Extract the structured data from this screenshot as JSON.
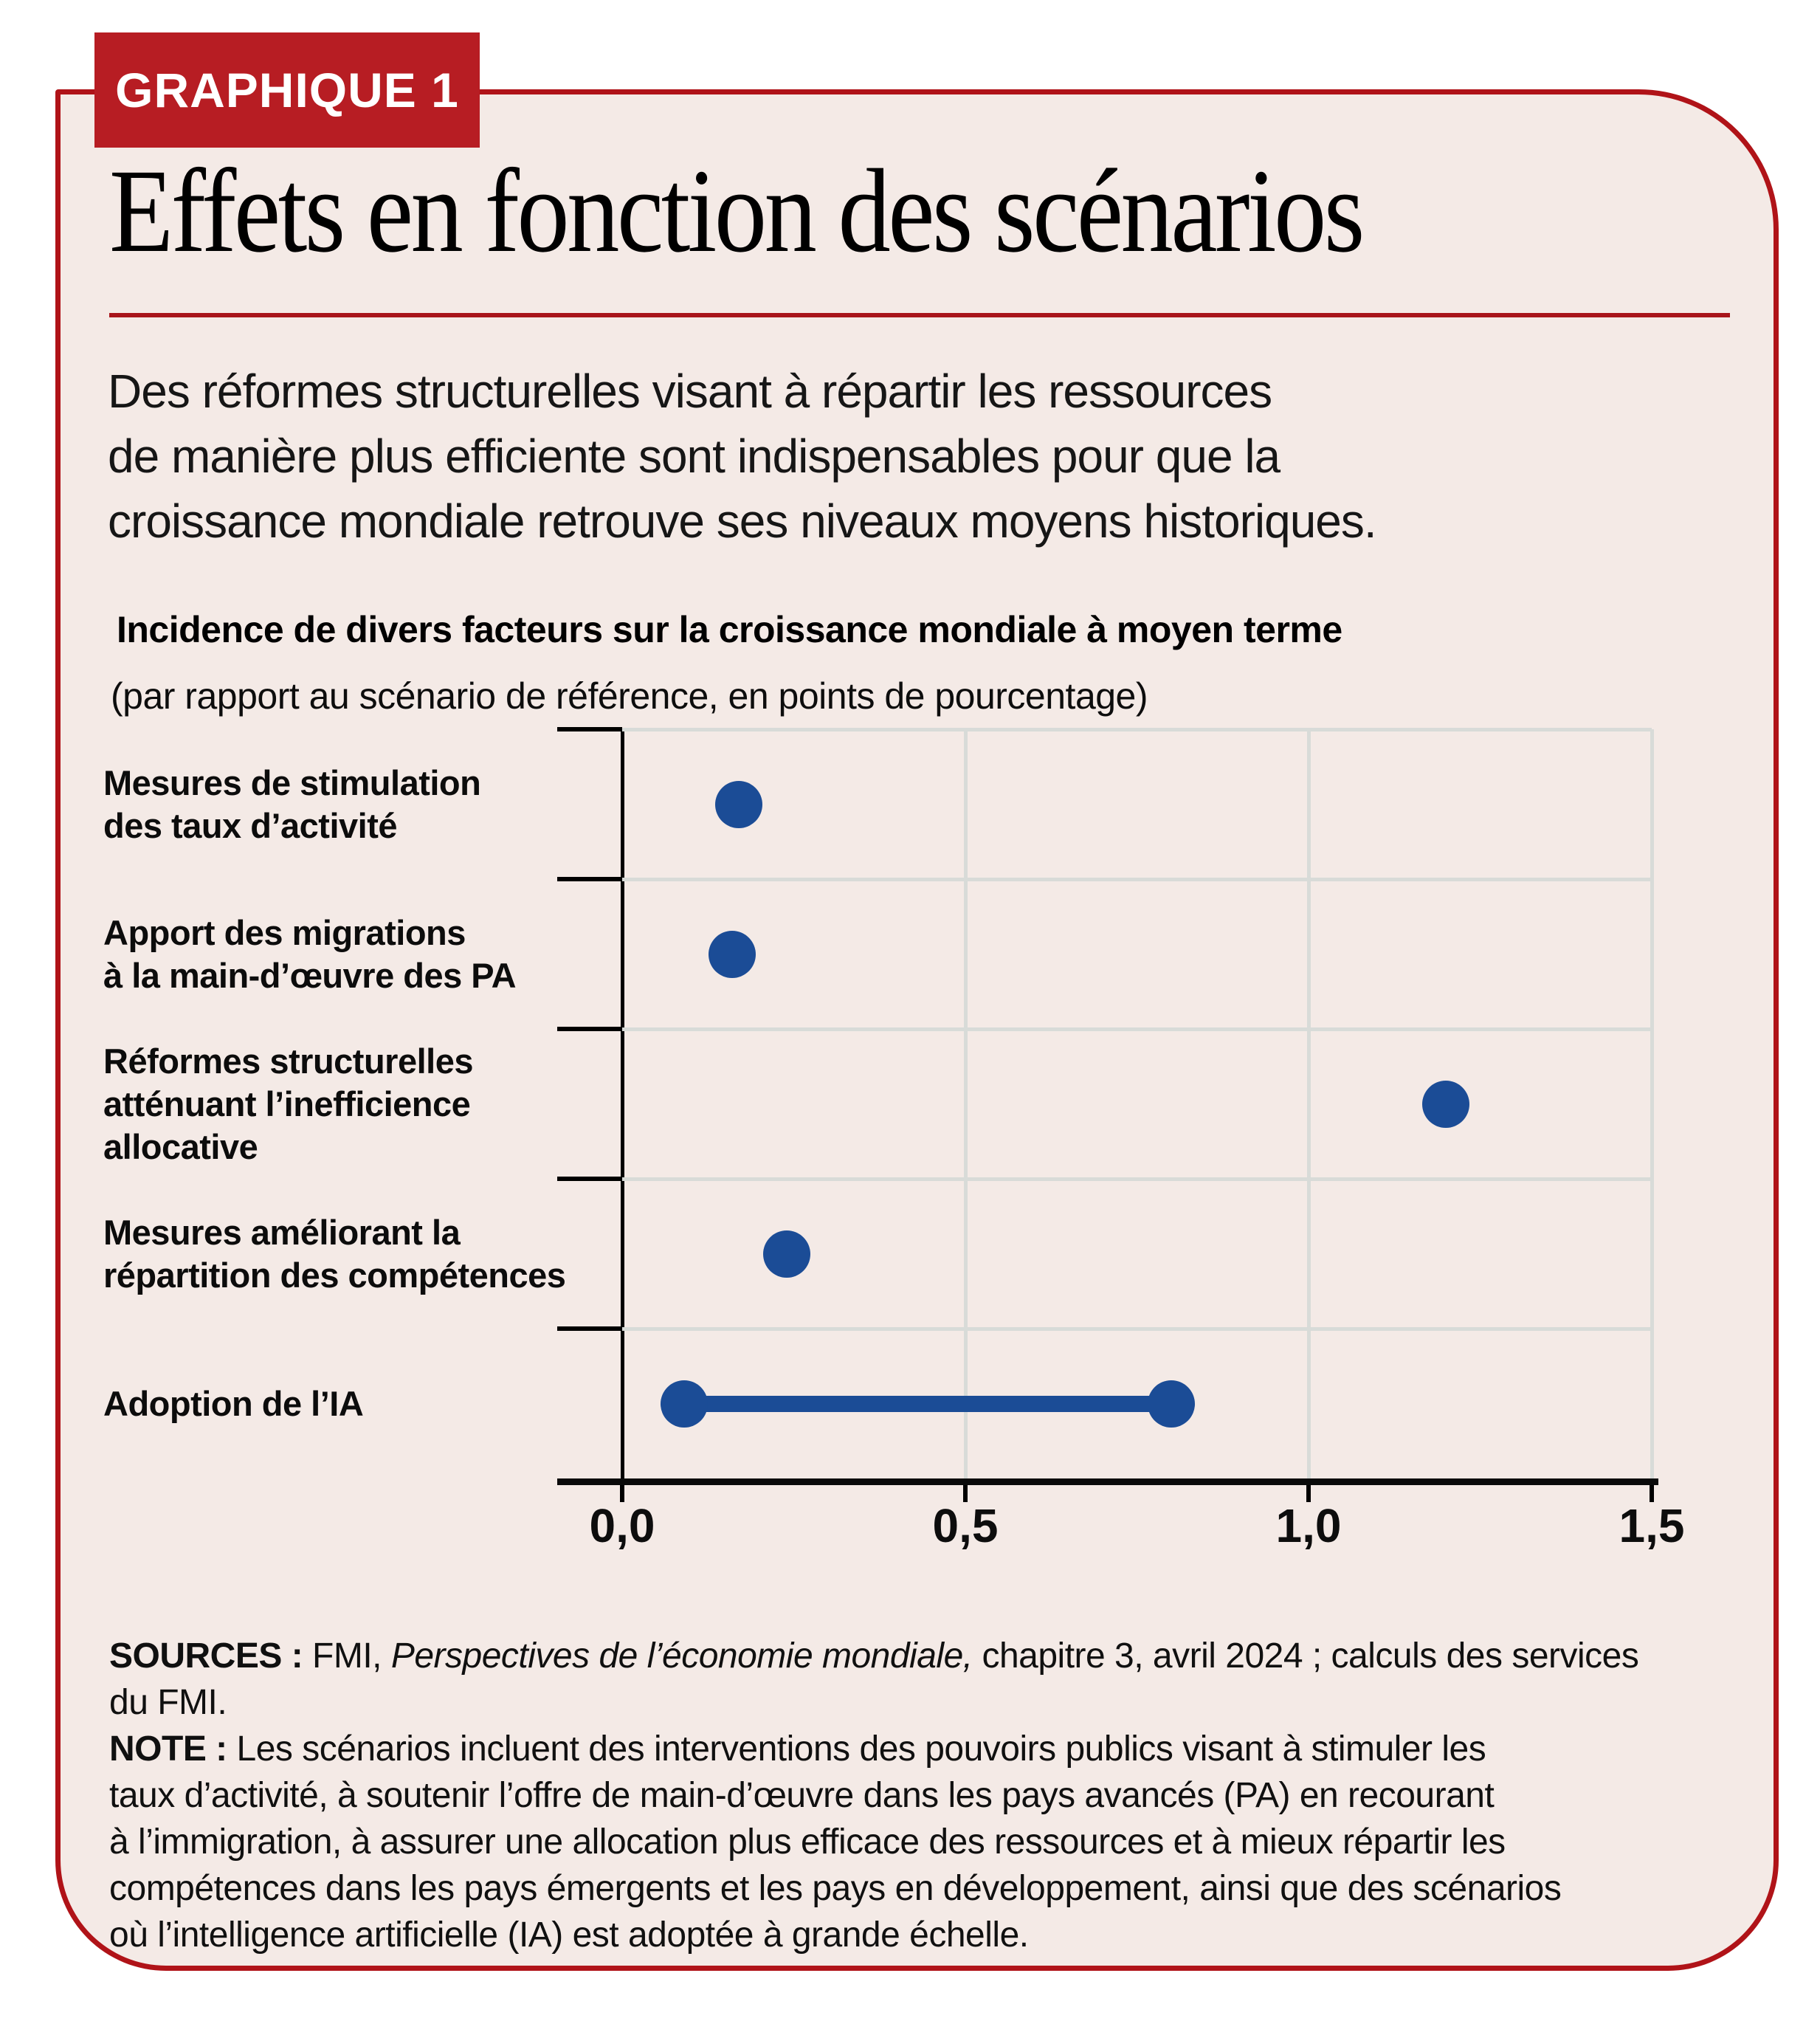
{
  "figure": {
    "badge": "GRAPHIQUE 1",
    "title": "Effets en fonction des scénarios",
    "subtitle_lines": [
      "Des réformes structurelles visant à répartir les ressources",
      "de manière plus efficiente sont indispensables pour que la",
      "croissance mondiale retrouve ses niveaux moyens historiques."
    ],
    "chart_heading": "Incidence de divers facteurs sur la croissance mondiale à moyen terme",
    "chart_subheading": "(par rapport au scénario de référence, en points de pourcentage)"
  },
  "chart_data": {
    "type": "scatter",
    "orientation": "horizontal",
    "title": "Incidence de divers facteurs sur la croissance mondiale à moyen terme",
    "subtitle": "(par rapport au scénario de référence, en points de pourcentage)",
    "categories": [
      "Mesures de stimulation\ndes taux d’activité",
      "Apport des migrations\nà la main-d’œuvre des PA",
      "Réformes structurelles\natténuant l’inefficience\nallocative",
      "Mesures améliorant la\nrépartition des compétences",
      "Adoption de l’IA"
    ],
    "values": [
      0.17,
      0.16,
      1.2,
      0.24,
      null
    ],
    "ranges": [
      null,
      null,
      null,
      null,
      [
        0.09,
        0.8
      ]
    ],
    "xlim": [
      0,
      1.5
    ],
    "x_ticks": [
      0,
      0.5,
      1.0,
      1.5
    ],
    "x_tick_labels": [
      "0,0",
      "0,5",
      "1,0",
      "1,5"
    ],
    "grid": true,
    "legend": "none",
    "dot_color": "#1b4c96",
    "grid_color": "#d8dbd8"
  },
  "colors": {
    "card_background": "#f4eae6",
    "border_red": "#b01318",
    "badge_red": "#b71d23",
    "rule_red": "#a8151b",
    "dot_blue": "#1b4c96",
    "grid_gray": "#d8dbd8"
  },
  "footnotes": {
    "lines": [
      {
        "segments": [
          {
            "t": "SOURCES : ",
            "b": 1
          },
          {
            "t": "FMI, "
          },
          {
            "t": "Perspectives de l’économie mondiale,",
            "i": 1
          },
          {
            "t": " chapitre 3, avril 2024 ; calculs des services"
          }
        ]
      },
      {
        "segments": [
          {
            "t": "du FMI."
          }
        ]
      },
      {
        "segments": [
          {
            "t": "NOTE : ",
            "b": 1
          },
          {
            "t": "Les scénarios incluent des interventions des pouvoirs publics visant à stimuler les"
          }
        ]
      },
      {
        "segments": [
          {
            "t": "taux d’activité, à soutenir l’offre de main-d’œuvre dans les pays avancés (PA) en recourant"
          }
        ]
      },
      {
        "segments": [
          {
            "t": "à l’immigration, à assurer une allocation plus efficace des ressources et à mieux répartir les"
          }
        ]
      },
      {
        "segments": [
          {
            "t": "compétences dans les pays émergents et les pays en développement, ainsi que des scénarios"
          }
        ]
      },
      {
        "segments": [
          {
            "t": "où l’intelligence artificielle (IA) est adoptée à grande échelle."
          }
        ]
      }
    ]
  }
}
